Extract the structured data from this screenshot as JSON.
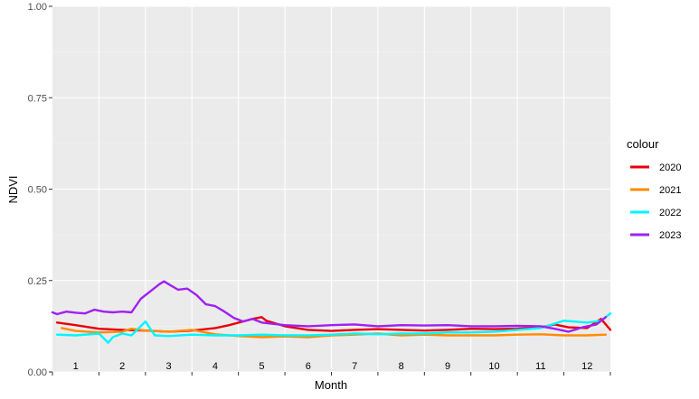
{
  "chart_data": {
    "type": "line",
    "xlabel": "Month",
    "ylabel": "NDVI",
    "xlim": [
      0.5,
      12.5
    ],
    "ylim": [
      0,
      1
    ],
    "x_ticks": [
      "1",
      "2",
      "3",
      "4",
      "5",
      "6",
      "7",
      "8",
      "9",
      "10",
      "11",
      "12"
    ],
    "y_ticks": [
      "0.00",
      "0.25",
      "0.50",
      "0.75",
      "1.00"
    ],
    "y_tick_values": [
      0,
      0.25,
      0.5,
      0.75,
      1.0
    ],
    "grid": true,
    "legend": {
      "title": "colour",
      "position": "right"
    },
    "series": [
      {
        "name": "2020",
        "color": "#e8000b",
        "x": [
          0.6,
          1.0,
          1.5,
          2.0,
          2.5,
          3.0,
          3.5,
          4.0,
          4.3,
          4.6,
          4.8,
          5.0,
          5.1,
          5.5,
          6.0,
          6.5,
          7.0,
          7.5,
          8.0,
          8.5,
          9.0,
          9.5,
          10.0,
          10.5,
          11.0,
          11.3,
          11.6,
          12.0,
          12.3,
          12.5
        ],
        "y": [
          0.135,
          0.128,
          0.118,
          0.115,
          0.113,
          0.11,
          0.113,
          0.12,
          0.128,
          0.138,
          0.145,
          0.15,
          0.14,
          0.125,
          0.115,
          0.112,
          0.115,
          0.117,
          0.115,
          0.113,
          0.115,
          0.118,
          0.117,
          0.118,
          0.122,
          0.13,
          0.122,
          0.12,
          0.145,
          0.115
        ]
      },
      {
        "name": "2021",
        "color": "#ff8c00",
        "x": [
          0.7,
          1.0,
          1.5,
          2.0,
          2.2,
          2.5,
          3.0,
          3.5,
          4.0,
          4.5,
          5.0,
          5.5,
          6.0,
          6.5,
          7.0,
          7.5,
          8.0,
          8.5,
          9.0,
          9.5,
          10.0,
          10.5,
          11.0,
          11.5,
          12.0,
          12.4
        ],
        "y": [
          0.12,
          0.112,
          0.108,
          0.11,
          0.118,
          0.113,
          0.11,
          0.115,
          0.103,
          0.098,
          0.095,
          0.097,
          0.095,
          0.1,
          0.102,
          0.105,
          0.1,
          0.102,
          0.1,
          0.1,
          0.1,
          0.102,
          0.103,
          0.1,
          0.1,
          0.102
        ]
      },
      {
        "name": "2022",
        "color": "#00f5ff",
        "x": [
          0.6,
          1.0,
          1.5,
          1.7,
          1.8,
          2.0,
          2.2,
          2.4,
          2.5,
          2.7,
          3.0,
          3.5,
          4.0,
          4.5,
          5.0,
          5.5,
          6.0,
          6.5,
          7.0,
          7.5,
          8.0,
          8.5,
          9.0,
          9.5,
          10.0,
          10.5,
          11.0,
          11.5,
          12.0,
          12.3,
          12.5
        ],
        "y": [
          0.102,
          0.1,
          0.105,
          0.08,
          0.095,
          0.105,
          0.1,
          0.125,
          0.138,
          0.1,
          0.098,
          0.102,
          0.1,
          0.1,
          0.102,
          0.1,
          0.1,
          0.102,
          0.105,
          0.103,
          0.105,
          0.105,
          0.108,
          0.108,
          0.11,
          0.115,
          0.12,
          0.14,
          0.135,
          0.14,
          0.16
        ]
      },
      {
        "name": "2023",
        "color": "#a020f0",
        "x": [
          0.5,
          0.6,
          0.8,
          1.0,
          1.2,
          1.4,
          1.6,
          1.8,
          2.0,
          2.2,
          2.4,
          2.6,
          2.8,
          2.9,
          3.0,
          3.2,
          3.4,
          3.6,
          3.8,
          4.0,
          4.2,
          4.4,
          4.6,
          4.8,
          5.0,
          5.5,
          6.0,
          6.5,
          7.0,
          7.5,
          8.0,
          8.5,
          9.0,
          9.5,
          10.0,
          10.5,
          11.0,
          11.3,
          11.6,
          11.9,
          12.2,
          12.4
        ],
        "y": [
          0.163,
          0.158,
          0.165,
          0.162,
          0.16,
          0.17,
          0.165,
          0.163,
          0.165,
          0.163,
          0.2,
          0.22,
          0.24,
          0.248,
          0.24,
          0.225,
          0.228,
          0.21,
          0.185,
          0.18,
          0.165,
          0.148,
          0.138,
          0.145,
          0.135,
          0.128,
          0.125,
          0.128,
          0.13,
          0.125,
          0.128,
          0.127,
          0.128,
          0.125,
          0.125,
          0.126,
          0.125,
          0.118,
          0.11,
          0.122,
          0.13,
          0.15
        ]
      }
    ]
  }
}
